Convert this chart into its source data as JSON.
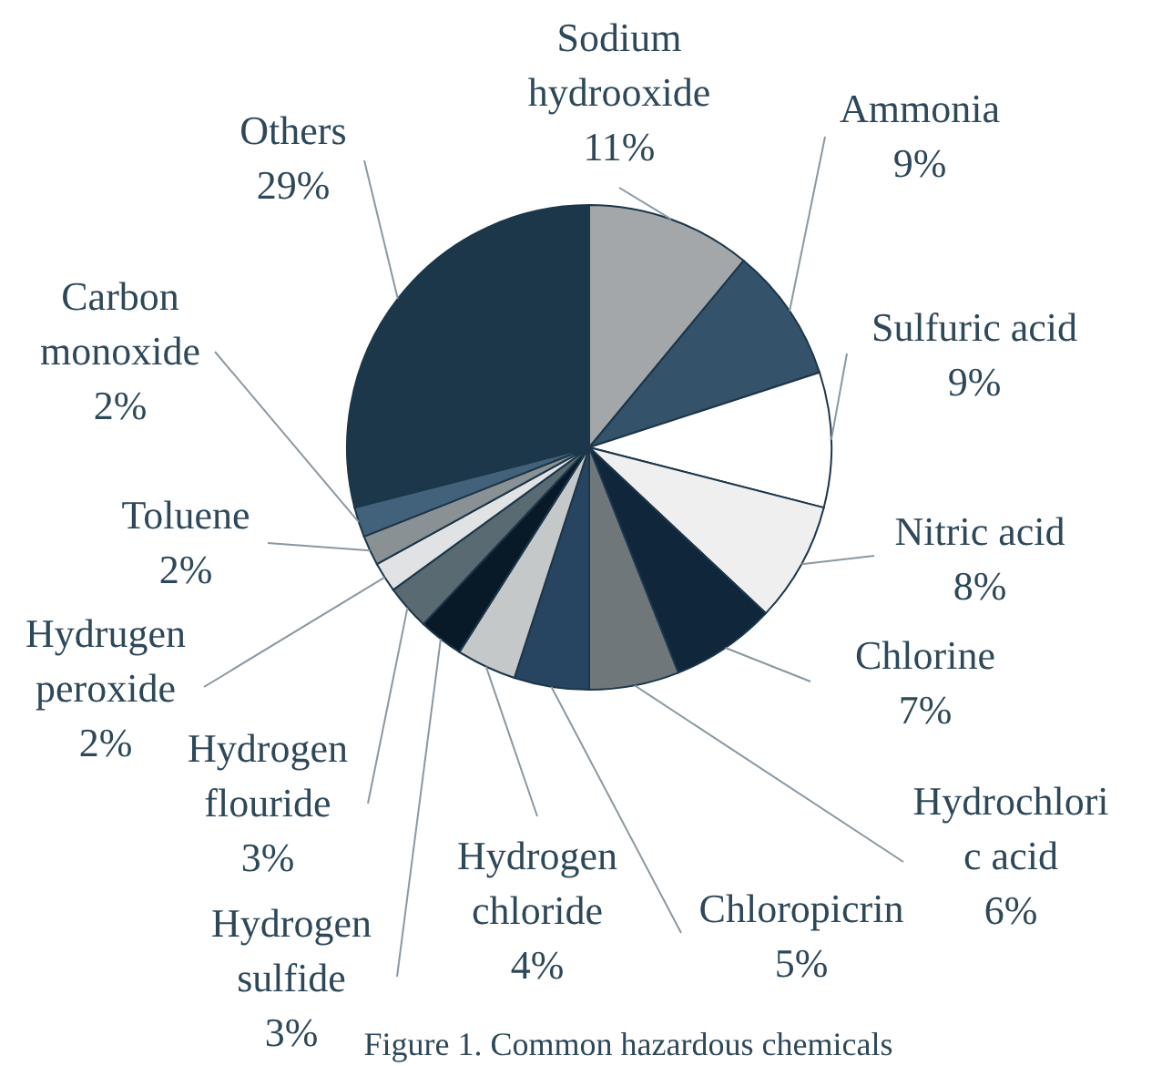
{
  "chart_data": {
    "type": "pie",
    "categories": [
      "Sodium\nhydrooxide",
      "Ammonia",
      "Sulfuric acid",
      "Nitric acid",
      "Chlorine",
      "Hydrochlori\nc acid",
      "Chloropicrin",
      "Hydrogen\nchloride",
      "Hydrogen\nsulfide",
      "Hydrogen\nflouride",
      "Hydrugen\nperoxide",
      "Toluene",
      "Carbon\nmonoxide",
      "Others"
    ],
    "values": [
      11,
      9,
      9,
      8,
      7,
      6,
      5,
      4,
      3,
      3,
      2,
      2,
      2,
      29
    ],
    "value_labels": [
      "11%",
      "9%",
      "9%",
      "8%",
      "7%",
      "6%",
      "5%",
      "4%",
      "3%",
      "3%",
      "2%",
      "2%",
      "2%",
      "29%"
    ],
    "colors": [
      "#a3a7a9",
      "#34536b",
      "#ffffff",
      "#efefef",
      "#10263a",
      "#6f777b",
      "#274560",
      "#c5c8c9",
      "#081a28",
      "#5a6a72",
      "#e0e2e3",
      "#8a9194",
      "#41627a",
      "#1c364a"
    ],
    "annotations": [
      "Figure 1. Common hazardous chemicals"
    ]
  }
}
